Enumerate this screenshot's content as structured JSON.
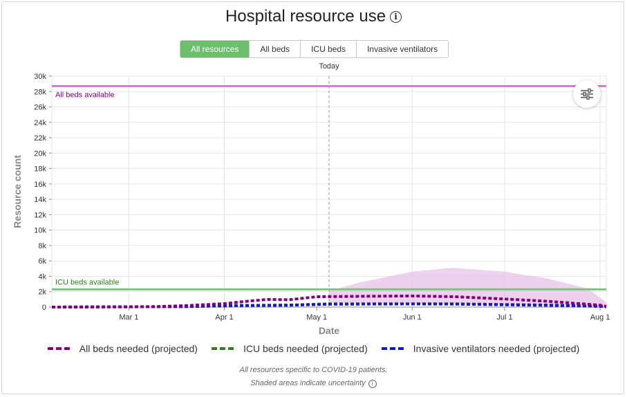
{
  "header": {
    "title": "Hospital resource use",
    "info_icon": "info-icon"
  },
  "tabs": [
    {
      "label": "All resources",
      "active": true
    },
    {
      "label": "All beds",
      "active": false
    },
    {
      "label": "ICU beds",
      "active": false
    },
    {
      "label": "Invasive ventilators",
      "active": false
    }
  ],
  "today_label": "Today",
  "settings_icon": "sliders-icon",
  "colors": {
    "all_beds": "#800080",
    "icu_beds": "#2e7d1a",
    "ventilators": "#1515d4",
    "all_beds_capacity": "#d07ed0",
    "icu_capacity": "#7cc47c",
    "uncertainty": "#e6c3e6",
    "active_tab": "#6dbf6d"
  },
  "chart_data": {
    "type": "line",
    "xlabel": "Date",
    "ylabel": "Resource count",
    "x_range": [
      "2020-02-05",
      "2020-08-03"
    ],
    "x_ticks": [
      {
        "date": "2020-03-01",
        "label": "Mar 1"
      },
      {
        "date": "2020-04-01",
        "label": "Apr 1"
      },
      {
        "date": "2020-05-01",
        "label": "May 1"
      },
      {
        "date": "2020-06-01",
        "label": "Jun 1"
      },
      {
        "date": "2020-07-01",
        "label": "Jul 1"
      },
      {
        "date": "2020-08-01",
        "label": "Aug 1"
      }
    ],
    "ylim": [
      0,
      30000
    ],
    "y_ticks": [
      {
        "v": 0,
        "label": "0"
      },
      {
        "v": 2000,
        "label": "2k"
      },
      {
        "v": 4000,
        "label": "4k"
      },
      {
        "v": 6000,
        "label": "6k"
      },
      {
        "v": 8000,
        "label": "8k"
      },
      {
        "v": 10000,
        "label": "10k"
      },
      {
        "v": 12000,
        "label": "12k"
      },
      {
        "v": 14000,
        "label": "14k"
      },
      {
        "v": 16000,
        "label": "16k"
      },
      {
        "v": 18000,
        "label": "18k"
      },
      {
        "v": 20000,
        "label": "20k"
      },
      {
        "v": 22000,
        "label": "22k"
      },
      {
        "v": 24000,
        "label": "24k"
      },
      {
        "v": 26000,
        "label": "26k"
      },
      {
        "v": 28000,
        "label": "28k"
      },
      {
        "v": 30000,
        "label": "30k"
      }
    ],
    "grid": true,
    "today": "2020-05-05",
    "capacity_lines": [
      {
        "name": "All beds available",
        "value": 28700,
        "color": "#d07ed0",
        "label_color": "#800080"
      },
      {
        "name": "ICU beds available",
        "value": 2300,
        "color": "#7cc47c",
        "label_color": "#2e7d1a"
      }
    ],
    "uncertainty_band": {
      "x": [
        "2020-05-05",
        "2020-05-15",
        "2020-06-01",
        "2020-06-14",
        "2020-07-01",
        "2020-07-15",
        "2020-07-28",
        "2020-08-03"
      ],
      "upper": [
        2100,
        3200,
        4600,
        5100,
        4600,
        3700,
        2400,
        600
      ],
      "lower": [
        600,
        500,
        450,
        420,
        300,
        200,
        100,
        0
      ]
    },
    "series": [
      {
        "name": "All beds needed (projected)",
        "color": "#800080",
        "x": [
          "2020-02-05",
          "2020-03-10",
          "2020-03-20",
          "2020-04-01",
          "2020-04-07",
          "2020-04-15",
          "2020-04-22",
          "2020-05-01",
          "2020-05-15",
          "2020-06-01",
          "2020-06-15",
          "2020-07-01",
          "2020-07-15",
          "2020-08-01",
          "2020-08-03"
        ],
        "values": [
          0,
          50,
          200,
          450,
          700,
          1000,
          950,
          1350,
          1400,
          1450,
          1350,
          1050,
          750,
          250,
          100
        ]
      },
      {
        "name": "ICU beds needed (projected)",
        "color": "#2e7d1a",
        "x": [
          "2020-02-05",
          "2020-03-20",
          "2020-04-07",
          "2020-04-22",
          "2020-05-05",
          "2020-06-01",
          "2020-06-15",
          "2020-07-01",
          "2020-07-15",
          "2020-08-01",
          "2020-08-03"
        ],
        "values": [
          0,
          80,
          220,
          260,
          420,
          430,
          420,
          340,
          260,
          120,
          50
        ]
      },
      {
        "name": "Invasive ventilators needed (projected)",
        "color": "#1515d4",
        "x": [
          "2020-02-05",
          "2020-03-20",
          "2020-04-07",
          "2020-04-22",
          "2020-05-05",
          "2020-06-01",
          "2020-06-15",
          "2020-07-01",
          "2020-07-15",
          "2020-08-01",
          "2020-08-03"
        ],
        "values": [
          0,
          60,
          200,
          240,
          380,
          400,
          390,
          300,
          230,
          100,
          40
        ]
      }
    ]
  },
  "footer": {
    "line1": "All resources specific to COVID-19 patients.",
    "line2": "Shaded areas indicate uncertainty"
  }
}
